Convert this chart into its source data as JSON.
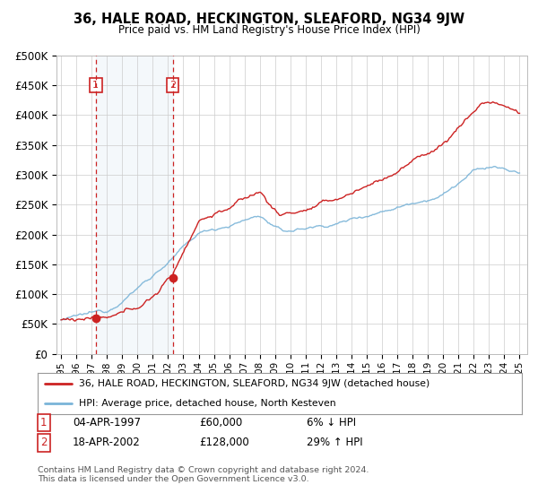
{
  "title": "36, HALE ROAD, HECKINGTON, SLEAFORD, NG34 9JW",
  "subtitle": "Price paid vs. HM Land Registry's House Price Index (HPI)",
  "ylabel_ticks": [
    "£0",
    "£50K",
    "£100K",
    "£150K",
    "£200K",
    "£250K",
    "£300K",
    "£350K",
    "£400K",
    "£450K",
    "£500K"
  ],
  "ytick_values": [
    0,
    50000,
    100000,
    150000,
    200000,
    250000,
    300000,
    350000,
    400000,
    450000,
    500000
  ],
  "xlim_start": 1994.7,
  "xlim_end": 2025.5,
  "ylim_min": 0,
  "ylim_max": 500000,
  "purchase1_year": 1997.27,
  "purchase1_price": 60000,
  "purchase1_label": "1",
  "purchase2_year": 2002.3,
  "purchase2_price": 128000,
  "purchase2_label": "2",
  "hpi_color": "#7ab4d8",
  "price_color": "#cc2222",
  "shading_color": "#dce9f5",
  "marker_color": "#cc2222",
  "vline_color": "#cc2222",
  "legend_line1": "36, HALE ROAD, HECKINGTON, SLEAFORD, NG34 9JW (detached house)",
  "legend_line2": "HPI: Average price, detached house, North Kesteven",
  "table_row1_num": "1",
  "table_row1_date": "04-APR-1997",
  "table_row1_price": "£60,000",
  "table_row1_hpi": "6% ↓ HPI",
  "table_row2_num": "2",
  "table_row2_date": "18-APR-2002",
  "table_row2_price": "£128,000",
  "table_row2_hpi": "29% ↑ HPI",
  "footer": "Contains HM Land Registry data © Crown copyright and database right 2024.\nThis data is licensed under the Open Government Licence v3.0.",
  "xtick_years": [
    1995,
    1996,
    1997,
    1998,
    1999,
    2000,
    2001,
    2002,
    2003,
    2004,
    2005,
    2006,
    2007,
    2008,
    2009,
    2010,
    2011,
    2012,
    2013,
    2014,
    2015,
    2016,
    2017,
    2018,
    2019,
    2020,
    2021,
    2022,
    2023,
    2024,
    2025
  ]
}
